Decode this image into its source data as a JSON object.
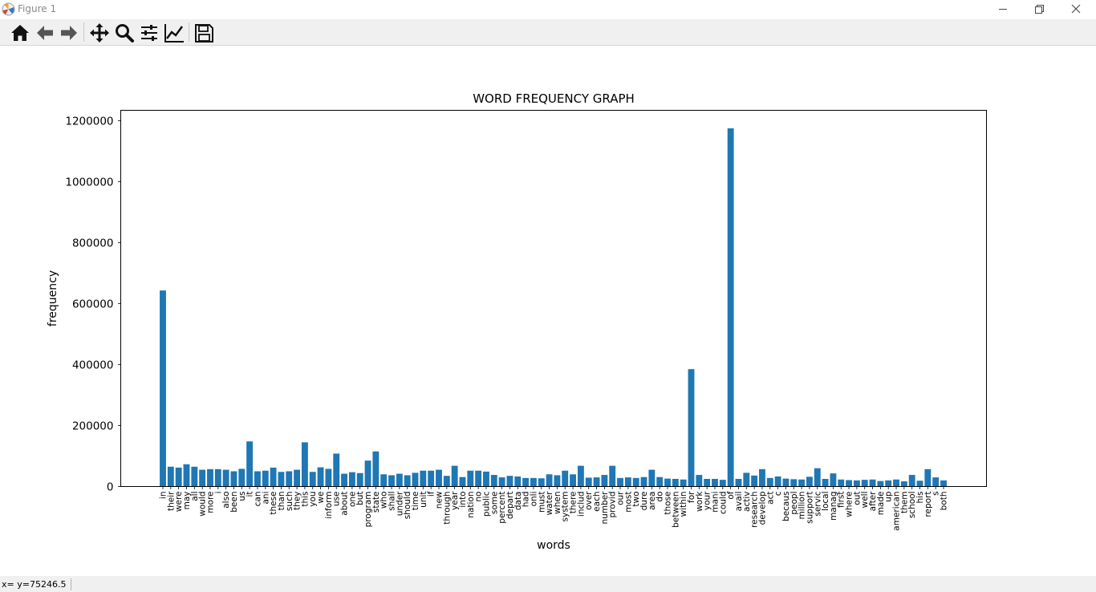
{
  "window": {
    "title": "Figure 1"
  },
  "toolbar": {
    "buttons": [
      {
        "icon": "home-icon"
      },
      {
        "icon": "back-arrow-icon"
      },
      {
        "icon": "forward-arrow-icon"
      },
      {
        "icon": "pan-move-icon"
      },
      {
        "icon": "zoom-magnifier-icon"
      },
      {
        "icon": "subplots-config-icon"
      },
      {
        "icon": "edit-axis-curve-icon"
      },
      {
        "icon": "save-disk-icon"
      }
    ]
  },
  "status": {
    "text": "x= y=75246.5"
  },
  "colors": {
    "bar": "#1f77b4",
    "toolbar_bg": "#f0f0f0"
  },
  "chart_data": {
    "type": "bar",
    "title": "WORD FREQUENCY GRAPH",
    "xlabel": "words",
    "ylabel": "frequency",
    "ylim": [
      0,
      1230000
    ],
    "yticks": [
      "0",
      "200000",
      "400000",
      "600000",
      "800000",
      "1000000",
      "1200000"
    ],
    "grid": false,
    "categories": [
      "in",
      "their",
      "were",
      "may",
      "all",
      "would",
      "more",
      "i",
      "also",
      "been",
      "us",
      "it",
      "can",
      "ani",
      "these",
      "than",
      "such",
      "they",
      "this",
      "you",
      "we",
      "inform",
      "use",
      "about",
      "one",
      "but",
      "program",
      "state",
      "who",
      "shall",
      "under",
      "should",
      "time",
      "unit",
      "if",
      "new",
      "through",
      "year",
      "into",
      "nation",
      "no",
      "public",
      "some",
      "percent",
      "depart",
      "data",
      "had",
      "onli",
      "must",
      "water",
      "when",
      "system",
      "there",
      "includ",
      "over",
      "each",
      "number",
      "provid",
      "our",
      "most",
      "two",
      "dure",
      "area",
      "do",
      "those",
      "between",
      "within",
      "for",
      "work",
      "your",
      "mani",
      "could",
      "of",
      "avail",
      "activ",
      "research",
      "develop",
      "act",
      "c",
      "becaus",
      "peopl",
      "million",
      "support",
      "servic",
      "local",
      "manag",
      "first",
      "where",
      "out",
      "well",
      "after",
      "made",
      "up",
      "american",
      "them",
      "school",
      "his",
      "report",
      "s",
      "both"
    ],
    "values": [
      643000,
      65000,
      62000,
      73000,
      65000,
      55000,
      57000,
      57000,
      55000,
      50000,
      58000,
      148000,
      50000,
      52000,
      62000,
      48000,
      50000,
      55000,
      145000,
      48000,
      63000,
      58000,
      108000,
      42000,
      47000,
      44000,
      85000,
      115000,
      40000,
      37000,
      42000,
      37000,
      45000,
      52000,
      52000,
      55000,
      35000,
      68000,
      31000,
      52000,
      52000,
      49000,
      38000,
      30000,
      35000,
      33000,
      28000,
      28000,
      27000,
      40000,
      37000,
      52000,
      40000,
      68000,
      29000,
      30000,
      38000,
      68000,
      28000,
      30000,
      28000,
      31000,
      55000,
      31000,
      26000,
      25000,
      23000,
      385000,
      38000,
      25000,
      25000,
      22000,
      1175000,
      25000,
      45000,
      36000,
      57000,
      28000,
      33000,
      26000,
      24000,
      23000,
      32000,
      60000,
      25000,
      43000,
      23000,
      21000,
      20000,
      22000,
      23000,
      18000,
      20000,
      23000,
      17000,
      38000,
      19000,
      57000,
      30000,
      20000
    ]
  }
}
